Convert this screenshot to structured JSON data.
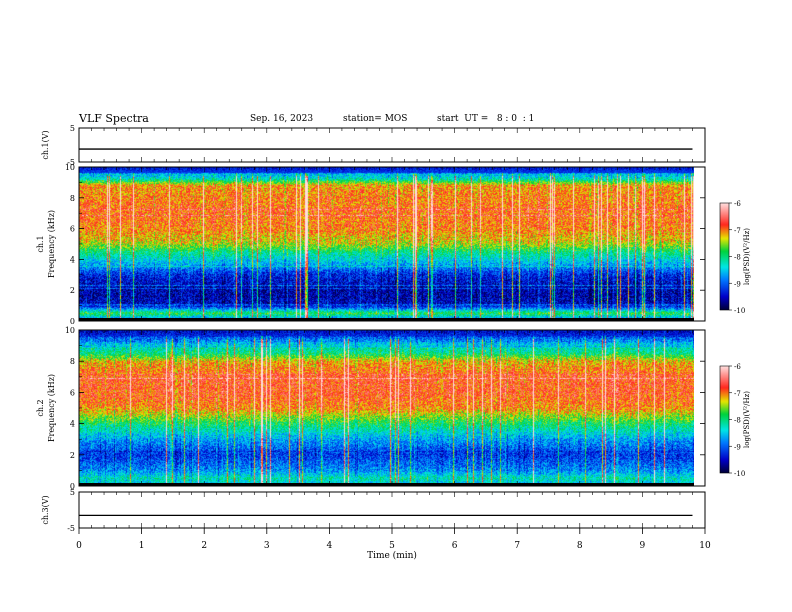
{
  "header": {
    "title": "VLF Spectra",
    "date": "Sep. 16, 2023",
    "station": "station= MOS",
    "start": "start  UT =   8 : 0  : 1"
  },
  "chart_data": [
    {
      "type": "line",
      "name": "ch1-waveform",
      "ylabel": "ch.1(V)",
      "ylim": [
        -5,
        5
      ],
      "yticks": [
        "5",
        "-5"
      ],
      "xlim": [
        0,
        10
      ],
      "series": [
        {
          "x": [
            0,
            9.8
          ],
          "y": [
            -1.2,
            -1.2
          ]
        }
      ],
      "color": "#000000"
    },
    {
      "type": "heatmap",
      "name": "ch1-spectrogram",
      "xlabel": "",
      "ylabel": "ch.1 Frequency (kHz)",
      "xlim": [
        0,
        10
      ],
      "data_xmax": 9.82,
      "ylim": [
        0,
        10
      ],
      "yticks": [
        "0",
        "2",
        "4",
        "6",
        "8",
        "10"
      ],
      "colorbar": {
        "label": "log(PSD)(V²/Hz)",
        "range": [
          -10,
          -6
        ],
        "ticks": [
          "-6",
          "-7",
          "-8",
          "-9",
          "-10"
        ]
      },
      "profile": [
        {
          "f": 0,
          "v": -9.2
        },
        {
          "f": 0.5,
          "v": -7.8
        },
        {
          "f": 1,
          "v": -9.5
        },
        {
          "f": 2,
          "v": -9.6
        },
        {
          "f": 3,
          "v": -9.3
        },
        {
          "f": 3.5,
          "v": -8.8
        },
        {
          "f": 4,
          "v": -8.4
        },
        {
          "f": 4.5,
          "v": -8.0
        },
        {
          "f": 5,
          "v": -7.4
        },
        {
          "f": 6,
          "v": -7.0
        },
        {
          "f": 7,
          "v": -6.9
        },
        {
          "f": 8,
          "v": -7.0
        },
        {
          "f": 8.8,
          "v": -7.1
        },
        {
          "f": 9.2,
          "v": -8.2
        },
        {
          "f": 9.6,
          "v": -8.8
        },
        {
          "f": 10,
          "v": -9.5
        }
      ]
    },
    {
      "type": "heatmap",
      "name": "ch2-spectrogram",
      "ylabel": "ch.2 Frequency (kHz)",
      "xlim": [
        0,
        10
      ],
      "data_xmax": 9.82,
      "ylim": [
        0,
        10
      ],
      "yticks": [
        "0",
        "2",
        "4",
        "6",
        "8",
        "10"
      ],
      "colorbar": {
        "label": "log(PSD)(V²/Hz)",
        "range": [
          -10,
          -6
        ],
        "ticks": [
          "-6",
          "-7",
          "-8",
          "-9",
          "-10"
        ]
      },
      "profile": [
        {
          "f": 0,
          "v": -8.6
        },
        {
          "f": 0.5,
          "v": -8.2
        },
        {
          "f": 1,
          "v": -8.8
        },
        {
          "f": 2,
          "v": -9.2
        },
        {
          "f": 3,
          "v": -8.7
        },
        {
          "f": 4,
          "v": -7.9
        },
        {
          "f": 5,
          "v": -7.0
        },
        {
          "f": 6,
          "v": -6.8
        },
        {
          "f": 7,
          "v": -6.8
        },
        {
          "f": 8,
          "v": -7.2
        },
        {
          "f": 8.5,
          "v": -8.0
        },
        {
          "f": 9,
          "v": -8.4
        },
        {
          "f": 9.5,
          "v": -9.0
        },
        {
          "f": 10,
          "v": -9.6
        }
      ]
    },
    {
      "type": "line",
      "name": "ch3-waveform",
      "ylabel": "ch.3(V)",
      "ylim": [
        -5,
        5
      ],
      "yticks": [
        "5",
        "-5"
      ],
      "xlim": [
        0,
        10
      ],
      "xlabel": "Time  (min)",
      "xticks": [
        "0",
        "1",
        "2",
        "3",
        "4",
        "5",
        "6",
        "7",
        "8",
        "9",
        "10"
      ],
      "series": [
        {
          "x": [
            0,
            9.8
          ],
          "y": [
            -1.5,
            -1.5
          ]
        }
      ],
      "color": "#000000"
    }
  ]
}
